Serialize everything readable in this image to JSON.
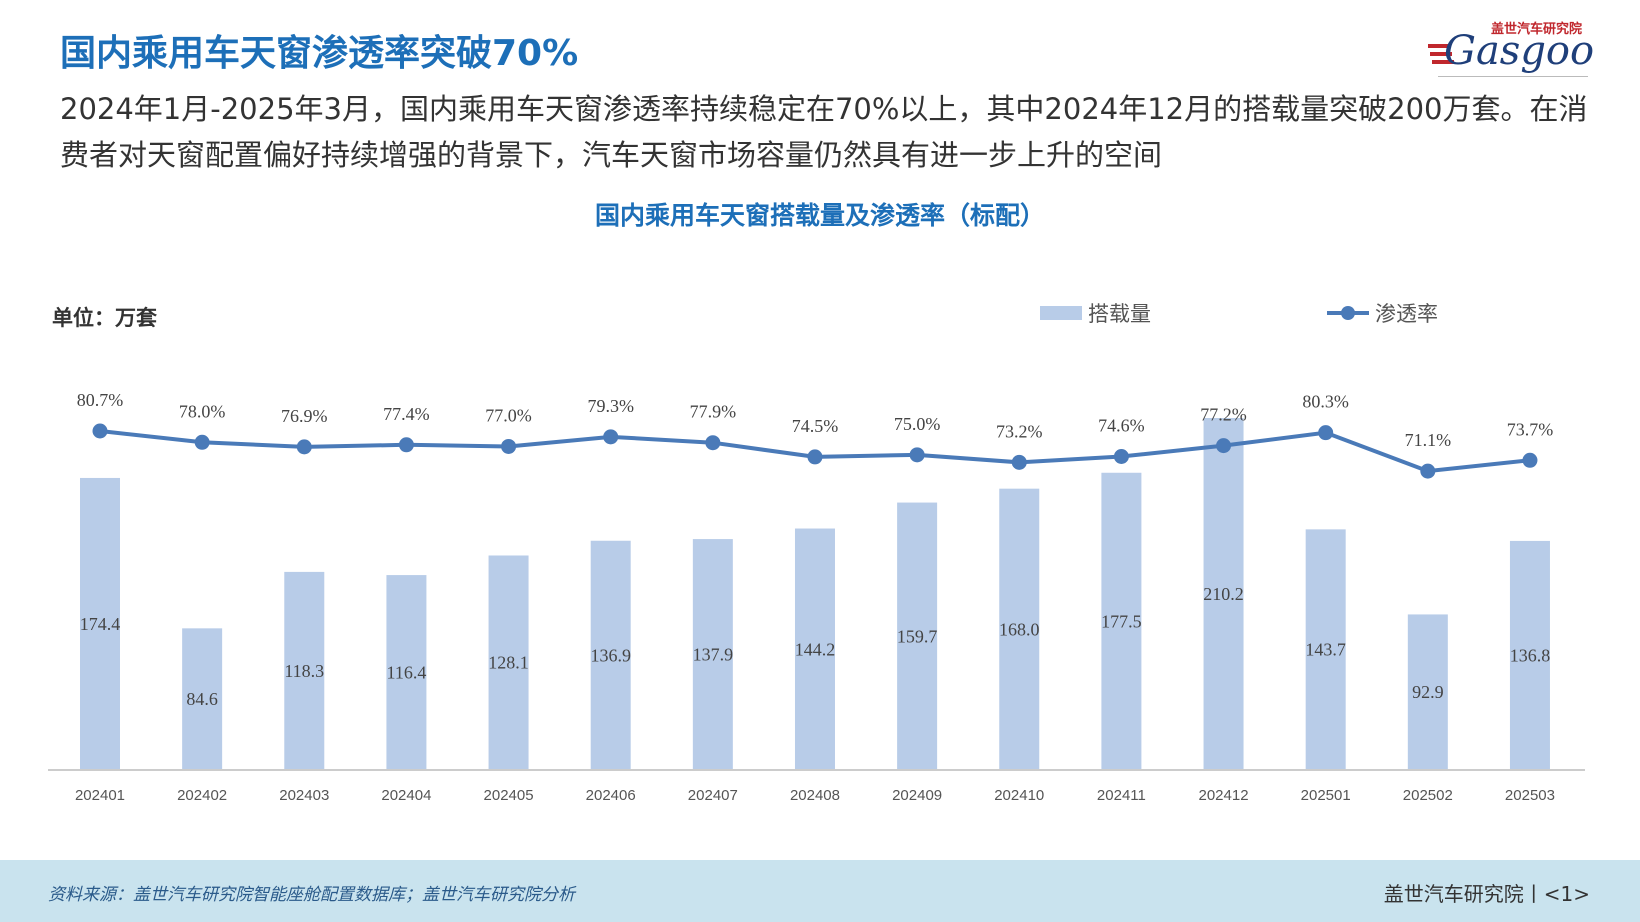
{
  "header": {
    "title": "国内乘用车天窗渗透率突破70%",
    "description": "2024年1月-2025年3月，国内乘用车天窗渗透率持续稳定在70%以上，其中2024年12月的搭载量突破200万套。在消费者对天窗配置偏好持续增强的背景下，汽车天窗市场容量仍然具有进一步上升的空间",
    "logo_cn": "盖世汽车研究院",
    "logo_en": "Gasgoo"
  },
  "chart_data": {
    "type": "bar+line",
    "title": "国内乘用车天窗搭载量及渗透率（标配）",
    "unit_label": "单位：万套",
    "categories": [
      "202401",
      "202402",
      "202403",
      "202404",
      "202405",
      "202406",
      "202407",
      "202408",
      "202409",
      "202410",
      "202411",
      "202412",
      "202501",
      "202502",
      "202503"
    ],
    "series": [
      {
        "name": "搭载量",
        "type": "bar",
        "values": [
          174.4,
          84.6,
          118.3,
          116.4,
          128.1,
          136.9,
          137.9,
          144.2,
          159.7,
          168.0,
          177.5,
          210.2,
          143.7,
          92.9,
          136.8
        ],
        "labels": [
          "174.4",
          "84.6",
          "118.3",
          "116.4",
          "128.1",
          "136.9",
          "137.9",
          "144.2",
          "159.7",
          "168.0",
          "177.5",
          "210.2",
          "143.7",
          "92.9",
          "136.8"
        ],
        "color": "#b8cce8"
      },
      {
        "name": "渗透率",
        "type": "line",
        "values": [
          80.7,
          78.0,
          76.9,
          77.4,
          77.0,
          79.3,
          77.9,
          74.5,
          75.0,
          73.2,
          74.6,
          77.2,
          80.3,
          71.1,
          73.7
        ],
        "labels": [
          "80.7%",
          "78.0%",
          "76.9%",
          "77.4%",
          "77.0%",
          "79.3%",
          "77.9%",
          "74.5%",
          "75.0%",
          "73.2%",
          "74.6%",
          "77.2%",
          "80.3%",
          "71.1%",
          "73.7%"
        ],
        "color": "#4a7ab8"
      }
    ],
    "legend_placement": "top-right",
    "grid": false
  },
  "footer": {
    "source": "资料来源：盖世汽车研究院智能座舱配置数据库；盖世汽车研究院分析",
    "page": "盖世汽车研究院丨<1>"
  }
}
